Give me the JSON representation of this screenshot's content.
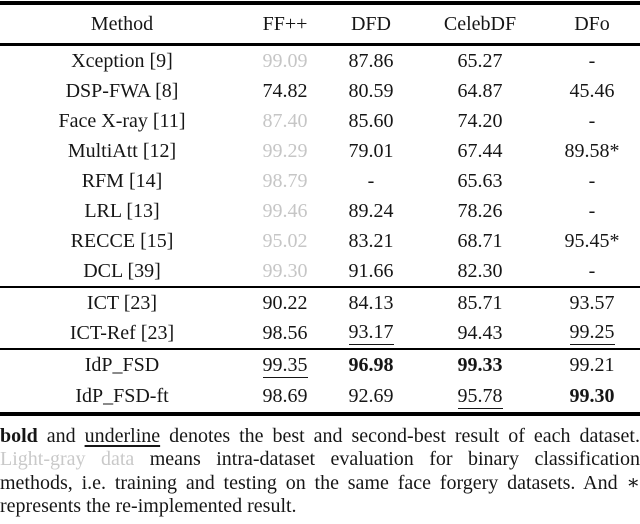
{
  "table": {
    "columns": [
      {
        "label": "Method"
      },
      {
        "label": "FF++"
      },
      {
        "label": "DFD"
      },
      {
        "label": "CelebDF"
      },
      {
        "label": "DFo"
      }
    ],
    "groups": [
      {
        "rows": [
          {
            "method": "Xception [9]",
            "cells": [
              {
                "text": "99.09",
                "style": "gray"
              },
              {
                "text": "87.86",
                "style": "normal"
              },
              {
                "text": "65.27",
                "style": "normal"
              },
              {
                "text": "-",
                "style": "normal"
              }
            ]
          },
          {
            "method": "DSP-FWA [8]",
            "cells": [
              {
                "text": "74.82",
                "style": "normal"
              },
              {
                "text": "80.59",
                "style": "normal"
              },
              {
                "text": "64.87",
                "style": "normal"
              },
              {
                "text": "45.46",
                "style": "normal"
              }
            ]
          },
          {
            "method": "Face X-ray [11]",
            "cells": [
              {
                "text": "87.40",
                "style": "gray"
              },
              {
                "text": "85.60",
                "style": "normal"
              },
              {
                "text": "74.20",
                "style": "normal"
              },
              {
                "text": "-",
                "style": "normal"
              }
            ]
          },
          {
            "method": "MultiAtt [12]",
            "cells": [
              {
                "text": "99.29",
                "style": "gray"
              },
              {
                "text": "79.01",
                "style": "normal"
              },
              {
                "text": "67.44",
                "style": "normal"
              },
              {
                "text": "89.58*",
                "style": "normal"
              }
            ]
          },
          {
            "method": "RFM [14]",
            "cells": [
              {
                "text": "98.79",
                "style": "gray"
              },
              {
                "text": "-",
                "style": "normal"
              },
              {
                "text": "65.63",
                "style": "normal"
              },
              {
                "text": "-",
                "style": "normal"
              }
            ]
          },
          {
            "method": "LRL [13]",
            "cells": [
              {
                "text": "99.46",
                "style": "gray"
              },
              {
                "text": "89.24",
                "style": "normal"
              },
              {
                "text": "78.26",
                "style": "normal"
              },
              {
                "text": "-",
                "style": "normal"
              }
            ]
          },
          {
            "method": "RECCE [15]",
            "cells": [
              {
                "text": "95.02",
                "style": "gray"
              },
              {
                "text": "83.21",
                "style": "normal"
              },
              {
                "text": "68.71",
                "style": "normal"
              },
              {
                "text": "95.45*",
                "style": "normal"
              }
            ]
          },
          {
            "method": "DCL [39]",
            "cells": [
              {
                "text": "99.30",
                "style": "gray"
              },
              {
                "text": "91.66",
                "style": "normal"
              },
              {
                "text": "82.30",
                "style": "normal"
              },
              {
                "text": "-",
                "style": "normal"
              }
            ]
          }
        ]
      },
      {
        "rows": [
          {
            "method": "ICT [23]",
            "cells": [
              {
                "text": "90.22",
                "style": "normal"
              },
              {
                "text": "84.13",
                "style": "underline_no"
              },
              {
                "text": "85.71",
                "style": "normal"
              },
              {
                "text": "93.57",
                "style": "normal"
              }
            ]
          },
          {
            "method": "ICT-Ref [23]",
            "cells": [
              {
                "text": "98.56",
                "style": "normal"
              },
              {
                "text": "93.17",
                "style": "underline"
              },
              {
                "text": "94.43",
                "style": "normal"
              },
              {
                "text": "99.25",
                "style": "underline"
              }
            ]
          }
        ]
      },
      {
        "rows": [
          {
            "method": "IdP_FSD",
            "cells": [
              {
                "text": "99.35",
                "style": "underline"
              },
              {
                "text": "96.98",
                "style": "bold"
              },
              {
                "text": "99.33",
                "style": "bold"
              },
              {
                "text": "99.21",
                "style": "normal"
              }
            ]
          },
          {
            "method": "IdP_FSD-ft",
            "cells": [
              {
                "text": "98.69",
                "style": "normal"
              },
              {
                "text": "92.69",
                "style": "normal"
              },
              {
                "text": "95.78",
                "style": "underline"
              },
              {
                "text": "99.30",
                "style": "bold"
              }
            ]
          }
        ]
      }
    ]
  },
  "caption": {
    "segments": [
      {
        "text": "bold",
        "style": "bold"
      },
      {
        "text": " and ",
        "style": "normal"
      },
      {
        "text": "underline",
        "style": "underline"
      },
      {
        "text": " denotes the best and second-best result of each dataset. ",
        "style": "normal"
      },
      {
        "text": "Light-gray data",
        "style": "gray"
      },
      {
        "text": " means intra-dataset evaluation for binary classification methods, i.e. training and testing on the same face forgery datasets. And ∗ represents the re-implemented result.",
        "style": "normal"
      }
    ]
  },
  "colors": {
    "text": "#161616",
    "light_gray": "#c6c6c6",
    "rule": "#000000"
  }
}
